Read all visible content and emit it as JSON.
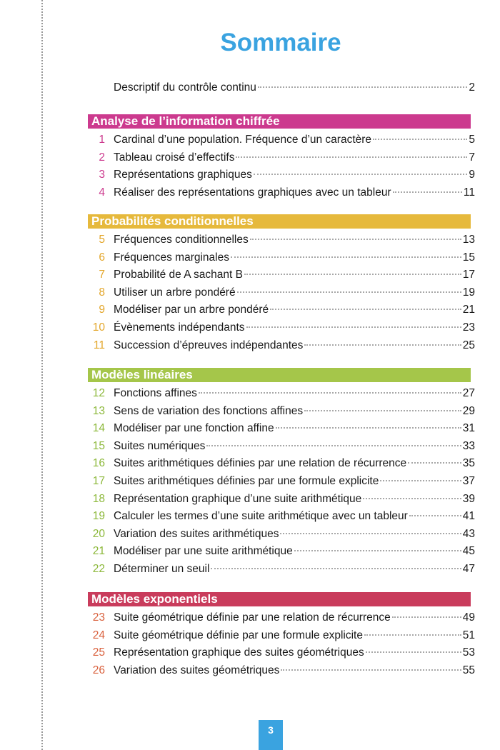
{
  "title": "Sommaire",
  "intro": {
    "label": "Descriptif du contrôle continu",
    "page": "2"
  },
  "sections": [
    {
      "title": "Analyse de l’information chiffrée",
      "color": "#cc3a8e",
      "num_color": "#cc3a8e",
      "items": [
        {
          "n": "1",
          "label": "Cardinal d’une population. Fréquence d’un caractère",
          "page": "5"
        },
        {
          "n": "2",
          "label": "Tableau croisé d’effectifs",
          "page": "7"
        },
        {
          "n": "3",
          "label": "Représentations graphiques",
          "page": "9"
        },
        {
          "n": "4",
          "label": "Réaliser des représentations graphiques avec un tableur",
          "page": "11"
        }
      ]
    },
    {
      "title": "Probabilités conditionnelles",
      "color": "#e6b93c",
      "num_color": "#e3a62a",
      "items": [
        {
          "n": "5",
          "label": "Fréquences conditionnelles",
          "page": "13"
        },
        {
          "n": "6",
          "label": "Fréquences marginales",
          "page": "15"
        },
        {
          "n": "7",
          "label": "Probabilité de A sachant B",
          "page": "17"
        },
        {
          "n": "8",
          "label": "Utiliser un arbre pondéré",
          "page": "19"
        },
        {
          "n": "9",
          "label": "Modéliser par un arbre pondéré",
          "page": "21"
        },
        {
          "n": "10",
          "label": "Évènements indépendants",
          "page": "23"
        },
        {
          "n": "11",
          "label": "Succession d’épreuves indépendantes",
          "page": "25"
        }
      ]
    },
    {
      "title": "Modèles linéaires",
      "color": "#a5c64a",
      "num_color": "#8cb83a",
      "items": [
        {
          "n": "12",
          "label": "Fonctions affines",
          "page": "27"
        },
        {
          "n": "13",
          "label": "Sens de variation des fonctions affines",
          "page": "29"
        },
        {
          "n": "14",
          "label": "Modéliser par une fonction affine",
          "page": "31"
        },
        {
          "n": "15",
          "label": "Suites numériques",
          "page": "33"
        },
        {
          "n": "16",
          "label": "Suites arithmétiques définies par une relation de récurrence",
          "page": "35"
        },
        {
          "n": "17",
          "label": "Suites arithmétiques définies par une formule explicite",
          "page": "37"
        },
        {
          "n": "18",
          "label": "Représentation graphique d’une suite arithmétique",
          "page": "39"
        },
        {
          "n": "19",
          "label": "Calculer les termes d’une suite arithmétique avec un tableur",
          "page": "41"
        },
        {
          "n": "20",
          "label": "Variation des suites arithmétiques",
          "page": "43"
        },
        {
          "n": "21",
          "label": "Modéliser par une suite arithmétique",
          "page": "45"
        },
        {
          "n": "22",
          "label": "Déterminer un seuil",
          "page": "47"
        }
      ]
    },
    {
      "title": "Modèles exponentiels",
      "color": "#c93c5c",
      "num_color": "#d9603c",
      "items": [
        {
          "n": "23",
          "label": "Suite géométrique définie par une relation de récurrence",
          "page": "49"
        },
        {
          "n": "24",
          "label": "Suite géométrique définie par une formule explicite",
          "page": "51"
        },
        {
          "n": "25",
          "label": "Représentation graphique des suites géométriques",
          "page": "53"
        },
        {
          "n": "26",
          "label": "Variation des suites géométriques",
          "page": "55"
        }
      ]
    }
  ],
  "page_number": "3"
}
